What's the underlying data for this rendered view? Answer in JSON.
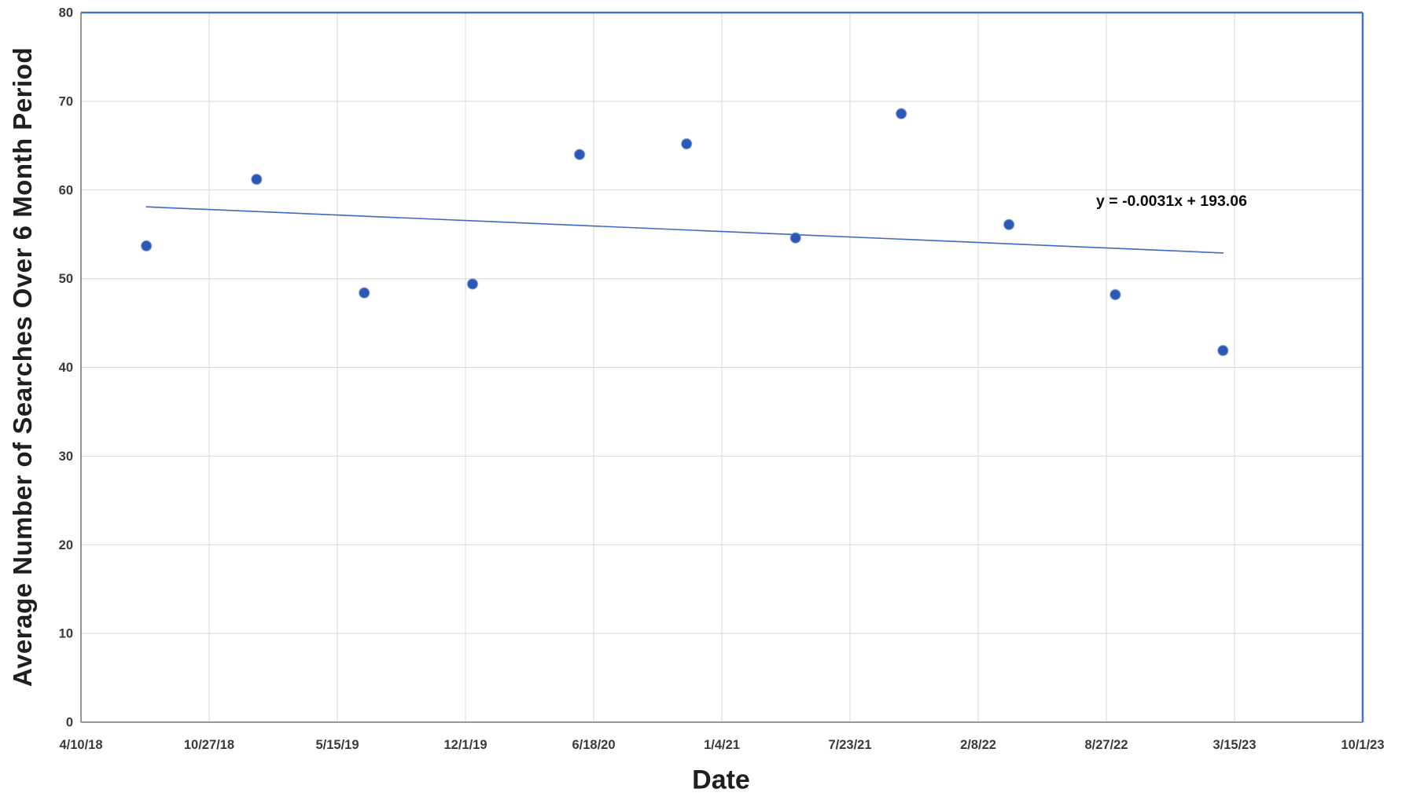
{
  "chart_data": {
    "type": "scatter",
    "title": "",
    "xlabel": "Date",
    "ylabel": "Average Number of Searches Over 6 Month Period",
    "grid": true,
    "legend": "none",
    "ylim": [
      0,
      80
    ],
    "y_tick_step": 10,
    "y_ticks": [
      0,
      10,
      20,
      30,
      40,
      50,
      60,
      70,
      80
    ],
    "xlim": [
      "4/10/18",
      "10/1/23"
    ],
    "x_ticks": [
      "4/10/18",
      "10/27/18",
      "5/15/19",
      "12/1/19",
      "6/18/20",
      "1/4/21",
      "7/23/21",
      "2/8/22",
      "8/27/22",
      "3/15/23",
      "10/1/23"
    ],
    "points": [
      {
        "date": "7/21/18",
        "value": 53.7
      },
      {
        "date": "1/9/19",
        "value": 61.2
      },
      {
        "date": "6/26/19",
        "value": 48.4
      },
      {
        "date": "12/12/19",
        "value": 49.4
      },
      {
        "date": "5/27/20",
        "value": 64.0
      },
      {
        "date": "11/10/20",
        "value": 65.2
      },
      {
        "date": "4/29/21",
        "value": 54.6
      },
      {
        "date": "10/11/21",
        "value": 68.6
      },
      {
        "date": "3/28/22",
        "value": 56.1
      },
      {
        "date": "9/10/22",
        "value": 48.2
      },
      {
        "date": "2/25/23",
        "value": 41.9
      }
    ],
    "trendline": {
      "equation": "y = -0.0031x + 193.06",
      "start": {
        "date": "7/21/18",
        "value": 58.1
      },
      "end": {
        "date": "2/25/23",
        "value": 52.9
      }
    },
    "colors": {
      "point": "#2b57b5",
      "point_halo": "#6d8fd2",
      "trend": "#3f6ac0",
      "plot_border": "#4472c4",
      "grid": "#d9d9d9",
      "axis": "#8a8a8a",
      "tick_text": "#3a3a3a",
      "title_text": "#1f1f1f"
    }
  }
}
